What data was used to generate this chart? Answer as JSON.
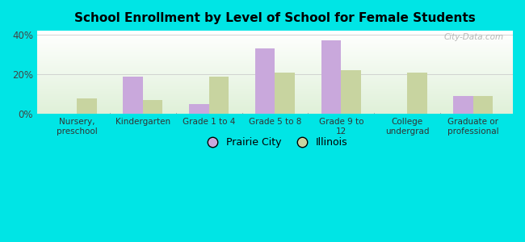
{
  "title": "School Enrollment by Level of School for Female Students",
  "categories": [
    "Nursery,\npreschool",
    "Kindergarten",
    "Grade 1 to 4",
    "Grade 5 to 8",
    "Grade 9 to\n12",
    "College\nundergrad",
    "Graduate or\nprofessional"
  ],
  "prairie_city": [
    0,
    19,
    5,
    33,
    37,
    0,
    9
  ],
  "illinois": [
    8,
    7,
    19,
    21,
    22,
    21,
    9
  ],
  "prairie_city_color": "#c9a8dc",
  "illinois_color": "#c8d4a0",
  "bg_color": "#00e5e5",
  "ylim": [
    0,
    42
  ],
  "yticks": [
    0,
    20,
    40
  ],
  "ytick_labels": [
    "0%",
    "20%",
    "40%"
  ],
  "watermark": "City-Data.com",
  "legend_labels": [
    "Prairie City",
    "Illinois"
  ],
  "bar_width": 0.3
}
